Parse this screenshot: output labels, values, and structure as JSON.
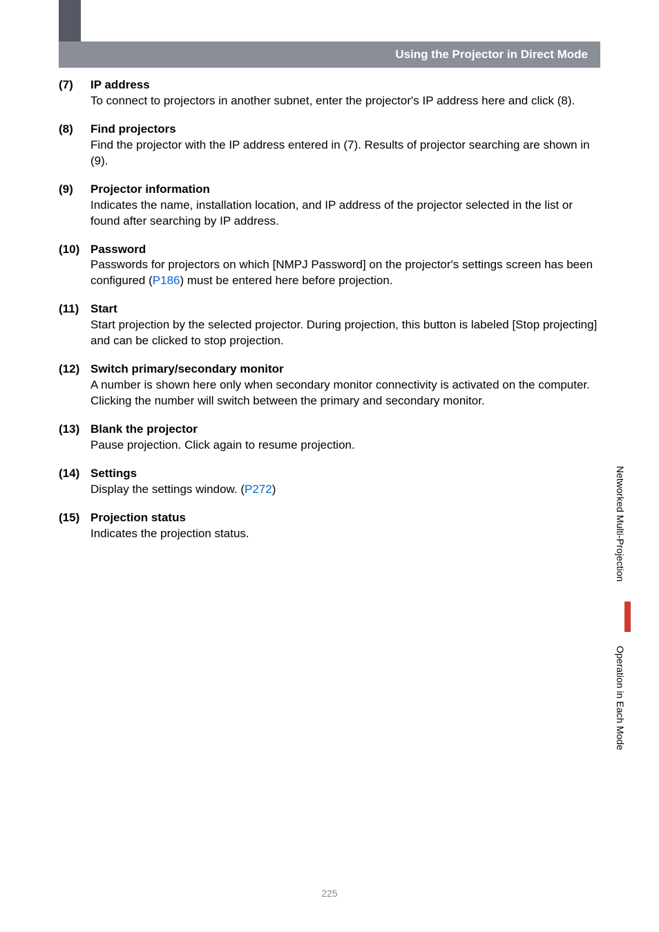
{
  "header": {
    "title": "Using the Projector in Direct Mode"
  },
  "items": [
    {
      "num": "(7)",
      "title": "IP address",
      "body_parts": [
        {
          "text": "To connect to projectors in another subnet, enter the projector's IP address here and click (8)."
        }
      ]
    },
    {
      "num": "(8)",
      "title": "Find projectors",
      "body_parts": [
        {
          "text": "Find the projector with the IP address entered in (7). Results of projector searching are shown in (9)."
        }
      ]
    },
    {
      "num": "(9)",
      "title": "Projector information",
      "body_parts": [
        {
          "text": "Indicates the name, installation location, and IP address of the projector selected in the list or found after searching by IP address."
        }
      ]
    },
    {
      "num": "(10)",
      "title": "Password",
      "body_parts": [
        {
          "text": "Passwords for projectors on which [NMPJ Password] on the projector's settings screen has been configured ("
        },
        {
          "text": "P186",
          "link": true
        },
        {
          "text": ") must be entered here before projection."
        }
      ]
    },
    {
      "num": "(11)",
      "title": "Start",
      "body_parts": [
        {
          "text": "Start projection by the selected projector. During projection, this button is labeled [Stop projecting] and can be clicked to stop projection."
        }
      ]
    },
    {
      "num": "(12)",
      "title": "Switch primary/secondary monitor",
      "body_parts": [
        {
          "text": "A number is shown here only when secondary monitor connectivity is activated on the computer. Clicking the number will switch between the primary and secondary monitor."
        }
      ]
    },
    {
      "num": "(13)",
      "title": "Blank the projector",
      "body_parts": [
        {
          "text": "Pause projection. Click again to resume projection."
        }
      ]
    },
    {
      "num": "(14)",
      "title": "Settings",
      "body_parts": [
        {
          "text": "Display the settings window. ("
        },
        {
          "text": "P272",
          "link": true
        },
        {
          "text": ")"
        }
      ]
    },
    {
      "num": "(15)",
      "title": "Projection status",
      "body_parts": [
        {
          "text": "Indicates the projection status."
        }
      ]
    }
  ],
  "side": {
    "label1": "Networked Multi-Projection",
    "label2": "Operation in Each Mode"
  },
  "page_number": "225",
  "colors": {
    "header_bg": "#8a8e97",
    "strip_bg": "#555964",
    "link": "#0066cc",
    "marker": "#d03a2f",
    "page_num": "#888888"
  }
}
